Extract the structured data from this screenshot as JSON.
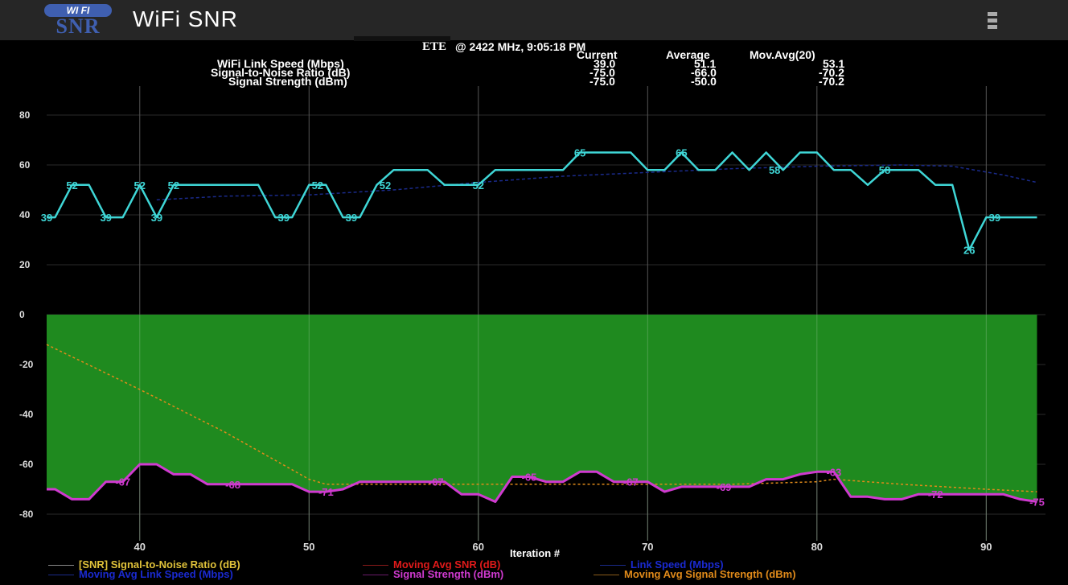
{
  "app": {
    "logo_top": "WI FI",
    "logo_bottom": "SNR",
    "title": "WiFi SNR"
  },
  "status": {
    "network_name": "ETE",
    "frequency_time": "@ 2422 MHz, 9:05:18 PM"
  },
  "stats": {
    "headers": [
      "Current",
      "Average",
      "Mov.Avg(20)"
    ],
    "rows": [
      {
        "label": "WiFi Link Speed (Mbps)",
        "current": "39.0",
        "average": "51.1",
        "movavg": "53.1"
      },
      {
        "label": "Signal-to-Noise Ratio (dB)",
        "current": "-75.0",
        "average": "-66.0",
        "movavg": "-70.2"
      },
      {
        "label": "Signal Strength (dBm)",
        "current": "-75.0",
        "average": "-50.0",
        "movavg": "-70.2"
      }
    ]
  },
  "chart_data": {
    "type": "line",
    "xlabel": "Iteration #",
    "xlim": [
      34.5,
      93.5
    ],
    "ylim": [
      -88,
      88
    ],
    "x_ticks": [
      40,
      50,
      60,
      70,
      80,
      90
    ],
    "y_ticks": [
      80,
      60,
      40,
      20,
      0,
      -20,
      -40,
      -60,
      -80
    ],
    "grid": true,
    "colors": {
      "link_speed": "#3fd6d6",
      "signal_strength": "#d03ad0",
      "snr_fill": "#1f8a1f",
      "mov_avg_signal": "#e08a1a",
      "mov_avg_link": "#1a2a8a",
      "mov_avg_snr": "#e01a1a",
      "snr_label": "#e0c23a"
    },
    "series": [
      {
        "name": "Link Speed (Mbps)",
        "x": [
          34.5,
          35,
          36,
          37,
          38,
          39,
          40,
          41,
          42,
          43,
          44,
          45,
          46,
          47,
          48,
          49,
          50,
          51,
          52,
          53,
          54,
          55,
          56,
          57,
          58,
          59,
          60,
          61,
          62,
          63,
          64,
          65,
          66,
          67,
          68,
          69,
          70,
          71,
          72,
          73,
          74,
          75,
          76,
          77,
          78,
          79,
          80,
          81,
          82,
          83,
          84,
          85,
          86,
          87,
          88,
          89,
          90,
          91,
          92,
          93
        ],
        "values": [
          39,
          39,
          52,
          52,
          39,
          39,
          52,
          39,
          52,
          52,
          52,
          52,
          52,
          52,
          39,
          39,
          52,
          52,
          39,
          39,
          52,
          58,
          58,
          58,
          52,
          52,
          52,
          58,
          58,
          58,
          58,
          58,
          65,
          65,
          65,
          65,
          58,
          58,
          65,
          58,
          58,
          65,
          58,
          65,
          58,
          65,
          65,
          58,
          58,
          52,
          58,
          58,
          58,
          52,
          52,
          26,
          39,
          39,
          39,
          39
        ],
        "point_labels": [
          {
            "x": 34.5,
            "y": 39,
            "text": "39"
          },
          {
            "x": 36,
            "y": 52,
            "text": "52"
          },
          {
            "x": 38,
            "y": 39,
            "text": "39"
          },
          {
            "x": 40,
            "y": 52,
            "text": "52"
          },
          {
            "x": 41,
            "y": 39,
            "text": "39"
          },
          {
            "x": 42,
            "y": 52,
            "text": "52"
          },
          {
            "x": 48.5,
            "y": 39,
            "text": "39"
          },
          {
            "x": 50.5,
            "y": 52,
            "text": "52"
          },
          {
            "x": 52.5,
            "y": 39,
            "text": "39"
          },
          {
            "x": 54.5,
            "y": 52,
            "text": "52"
          },
          {
            "x": 60,
            "y": 52,
            "text": "52"
          },
          {
            "x": 66,
            "y": 65,
            "text": "65"
          },
          {
            "x": 72,
            "y": 65,
            "text": "65"
          },
          {
            "x": 77.5,
            "y": 58,
            "text": "58"
          },
          {
            "x": 84,
            "y": 58,
            "text": "58"
          },
          {
            "x": 89,
            "y": 26,
            "text": "26"
          },
          {
            "x": 90.5,
            "y": 39,
            "text": "39"
          }
        ]
      },
      {
        "name": "Moving Avg Link Speed (Mbps)",
        "x": [
          41,
          45,
          50,
          55,
          60,
          65,
          70,
          75,
          80,
          85,
          88,
          91,
          93
        ],
        "values": [
          46,
          47.5,
          48,
          50,
          53,
          55.5,
          57,
          58.5,
          59.5,
          60,
          59.5,
          56,
          53
        ]
      },
      {
        "name": "Signal Strength (dBm)",
        "x": [
          34.5,
          35,
          36,
          37,
          38,
          39,
          40,
          41,
          42,
          43,
          44,
          45,
          46,
          47,
          48,
          49,
          50,
          51,
          52,
          53,
          54,
          55,
          56,
          57,
          58,
          59,
          60,
          61,
          62,
          63,
          64,
          65,
          66,
          67,
          68,
          69,
          70,
          71,
          72,
          73,
          74,
          75,
          76,
          77,
          78,
          79,
          80,
          81,
          82,
          83,
          84,
          85,
          86,
          87,
          88,
          89,
          90,
          91,
          92,
          93
        ],
        "values": [
          -70,
          -70,
          -74,
          -74,
          -67,
          -67,
          -60,
          -60,
          -64,
          -64,
          -68,
          -68,
          -68,
          -68,
          -68,
          -68,
          -71,
          -71,
          -70,
          -67,
          -67,
          -67,
          -67,
          -67,
          -67,
          -72,
          -72,
          -75,
          -65,
          -65,
          -67,
          -67,
          -63,
          -63,
          -67,
          -67,
          -67,
          -71,
          -69,
          -69,
          -69,
          -69,
          -69,
          -66,
          -66,
          -64,
          -63,
          -63,
          -73,
          -73,
          -74,
          -74,
          -72,
          -72,
          -72,
          -72,
          -72,
          -72,
          -74,
          -75
        ],
        "point_labels": [
          {
            "x": 39,
            "y": -67,
            "text": "-67"
          },
          {
            "x": 45.5,
            "y": -68,
            "text": "-68"
          },
          {
            "x": 51,
            "y": -71,
            "text": "-71"
          },
          {
            "x": 57.5,
            "y": -67,
            "text": "-67"
          },
          {
            "x": 63,
            "y": -65,
            "text": "-65"
          },
          {
            "x": 69,
            "y": -67,
            "text": "-67"
          },
          {
            "x": 74.5,
            "y": -69,
            "text": "-69"
          },
          {
            "x": 81,
            "y": -63,
            "text": "-63"
          },
          {
            "x": 87,
            "y": -72,
            "text": "-72"
          },
          {
            "x": 93,
            "y": -75,
            "text": "-75"
          }
        ]
      },
      {
        "name": "Moving Avg Signal Strength (dBm)",
        "x": [
          34.5,
          40,
          45,
          50,
          51,
          55,
          60,
          65,
          70,
          75,
          80,
          81,
          85,
          90,
          93
        ],
        "values": [
          -12,
          -30,
          -47,
          -66,
          -68,
          -68,
          -68,
          -68,
          -68,
          -68,
          -67,
          -66,
          -68,
          -70,
          -71
        ]
      },
      {
        "name": "[SNR] Signal-to-Noise Ratio (dB)",
        "fill_from": 0,
        "fill_to": "Signal Strength (dBm)"
      }
    ]
  },
  "legend": [
    {
      "label": "[SNR] Signal-to-Noise Ratio (dB)",
      "color": "#e0c23a"
    },
    {
      "label": "Moving Avg SNR (dB)",
      "color": "#e01a1a"
    },
    {
      "label": "Link Speed (Mbps)",
      "color": "#1a2ad0"
    },
    {
      "label": "Moving Avg Link Speed (Mbps)",
      "color": "#1a2ad0"
    },
    {
      "label": "Signal Strength (dBm)",
      "color": "#d03ad0"
    },
    {
      "label": "Moving Avg Signal Strength (dBm)",
      "color": "#e08a1a"
    }
  ]
}
